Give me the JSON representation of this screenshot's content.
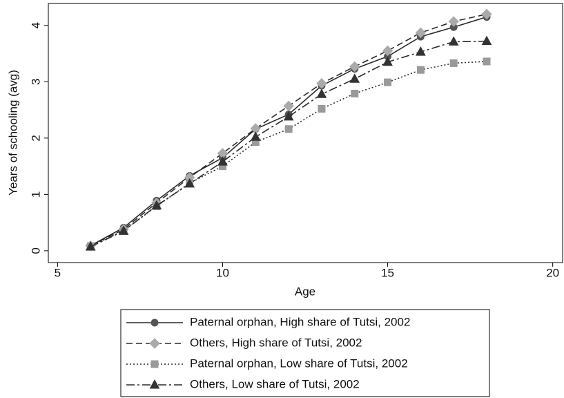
{
  "chart_data": {
    "type": "line",
    "x_label": "Age",
    "y_label": "Years of schooling (avg)",
    "x": [
      6,
      7,
      8,
      9,
      10,
      11,
      12,
      13,
      14,
      15,
      16,
      17,
      18
    ],
    "series": [
      {
        "name": "Paternal orphan, High share of Tutsi, 2002",
        "color": "#2a2a2a",
        "marker_color": "#555555",
        "dash": "solid",
        "marker": "circle",
        "values": [
          0.09,
          0.41,
          0.89,
          1.33,
          1.65,
          2.16,
          2.42,
          2.93,
          3.23,
          3.45,
          3.8,
          3.97,
          4.15
        ]
      },
      {
        "name": "Others, High share of Tutsi, 2002",
        "color": "#2a2a2a",
        "marker_color": "#aaaaaa",
        "dash": "dash",
        "marker": "diamond",
        "values": [
          0.09,
          0.38,
          0.85,
          1.3,
          1.73,
          2.17,
          2.57,
          2.97,
          3.27,
          3.55,
          3.87,
          4.07,
          4.2
        ]
      },
      {
        "name": "Paternal orphan, Low share of Tutsi, 2002",
        "color": "#2a2a2a",
        "marker_color": "#999999",
        "dash": "dot",
        "marker": "square",
        "values": [
          0.08,
          0.36,
          0.79,
          1.2,
          1.5,
          1.93,
          2.16,
          2.52,
          2.79,
          2.99,
          3.21,
          3.33,
          3.36
        ]
      },
      {
        "name": "Others, Low share of Tutsi, 2002",
        "color": "#2a2a2a",
        "marker_color": "#333333",
        "dash": "dashdot",
        "marker": "triangle",
        "values": [
          0.07,
          0.35,
          0.8,
          1.19,
          1.58,
          2.02,
          2.38,
          2.78,
          3.05,
          3.35,
          3.53,
          3.71,
          3.72
        ]
      }
    ],
    "xlim": [
      4.72,
      20.3
    ],
    "xticks": [
      5,
      10,
      15,
      20
    ],
    "ylim": [
      -0.21,
      4.39
    ],
    "yticks": [
      0,
      1,
      2,
      3,
      4
    ],
    "grid": false,
    "legend": "bottom"
  }
}
